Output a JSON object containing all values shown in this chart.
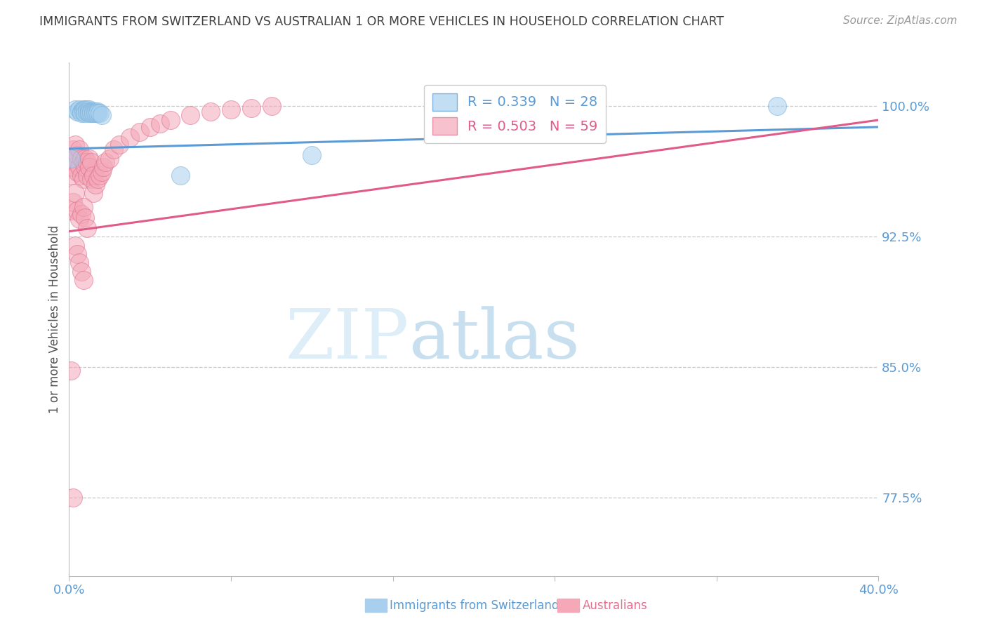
{
  "title": "IMMIGRANTS FROM SWITZERLAND VS AUSTRALIAN 1 OR MORE VEHICLES IN HOUSEHOLD CORRELATION CHART",
  "source": "Source: ZipAtlas.com",
  "ylabel": "1 or more Vehicles in Household",
  "r_blue": 0.339,
  "n_blue": 28,
  "r_pink": 0.503,
  "n_pink": 59,
  "legend_label_blue": "Immigrants from Switzerland",
  "legend_label_pink": "Australians",
  "x_min": 0.0,
  "x_max": 0.4,
  "y_min": 0.73,
  "y_max": 1.025,
  "yticks": [
    1.0,
    0.925,
    0.85,
    0.775
  ],
  "ytick_labels": [
    "100.0%",
    "92.5%",
    "85.0%",
    "77.5%"
  ],
  "xticks": [
    0.0,
    0.08,
    0.16,
    0.24,
    0.32,
    0.4
  ],
  "xtick_labels": [
    "0.0%",
    "",
    "",
    "",
    "",
    "40.0%"
  ],
  "blue_color": "#a8d0ee",
  "pink_color": "#f4a8b8",
  "blue_line_color": "#5b9bd5",
  "pink_line_color": "#e05a8a",
  "grid_color": "#c8c8c8",
  "title_color": "#404040",
  "source_color": "#999999",
  "axis_label_color": "#555555",
  "tick_label_color": "#5b9bd5",
  "blue_scatter_x": [
    0.001,
    0.003,
    0.004,
    0.005,
    0.006,
    0.006,
    0.007,
    0.007,
    0.008,
    0.008,
    0.009,
    0.009,
    0.01,
    0.01,
    0.01,
    0.011,
    0.011,
    0.012,
    0.012,
    0.013,
    0.013,
    0.014,
    0.014,
    0.015,
    0.016,
    0.12,
    0.35,
    0.055
  ],
  "blue_scatter_y": [
    0.97,
    0.998,
    0.997,
    0.998,
    0.997,
    0.996,
    0.998,
    0.997,
    0.998,
    0.996,
    0.998,
    0.997,
    0.998,
    0.997,
    0.996,
    0.997,
    0.996,
    0.997,
    0.996,
    0.997,
    0.996,
    0.997,
    0.996,
    0.996,
    0.995,
    0.972,
    1.0,
    0.96
  ],
  "pink_scatter_x": [
    0.001,
    0.001,
    0.002,
    0.002,
    0.003,
    0.003,
    0.004,
    0.004,
    0.005,
    0.005,
    0.006,
    0.006,
    0.007,
    0.007,
    0.008,
    0.008,
    0.009,
    0.009,
    0.01,
    0.01,
    0.011,
    0.011,
    0.012,
    0.012,
    0.013,
    0.014,
    0.015,
    0.016,
    0.017,
    0.018,
    0.02,
    0.022,
    0.025,
    0.03,
    0.035,
    0.04,
    0.045,
    0.05,
    0.06,
    0.07,
    0.08,
    0.09,
    0.1,
    0.001,
    0.002,
    0.003,
    0.004,
    0.005,
    0.006,
    0.007,
    0.008,
    0.009,
    0.003,
    0.004,
    0.005,
    0.006,
    0.007,
    0.001,
    0.002
  ],
  "pink_scatter_y": [
    0.97,
    0.96,
    0.975,
    0.965,
    0.978,
    0.968,
    0.972,
    0.962,
    0.975,
    0.965,
    0.97,
    0.96,
    0.968,
    0.958,
    0.97,
    0.965,
    0.968,
    0.96,
    0.97,
    0.965,
    0.968,
    0.958,
    0.96,
    0.95,
    0.955,
    0.958,
    0.96,
    0.962,
    0.965,
    0.968,
    0.97,
    0.975,
    0.978,
    0.982,
    0.985,
    0.988,
    0.99,
    0.992,
    0.995,
    0.997,
    0.998,
    0.999,
    1.0,
    0.94,
    0.945,
    0.95,
    0.94,
    0.935,
    0.938,
    0.942,
    0.936,
    0.93,
    0.92,
    0.915,
    0.91,
    0.905,
    0.9,
    0.848,
    0.775
  ]
}
